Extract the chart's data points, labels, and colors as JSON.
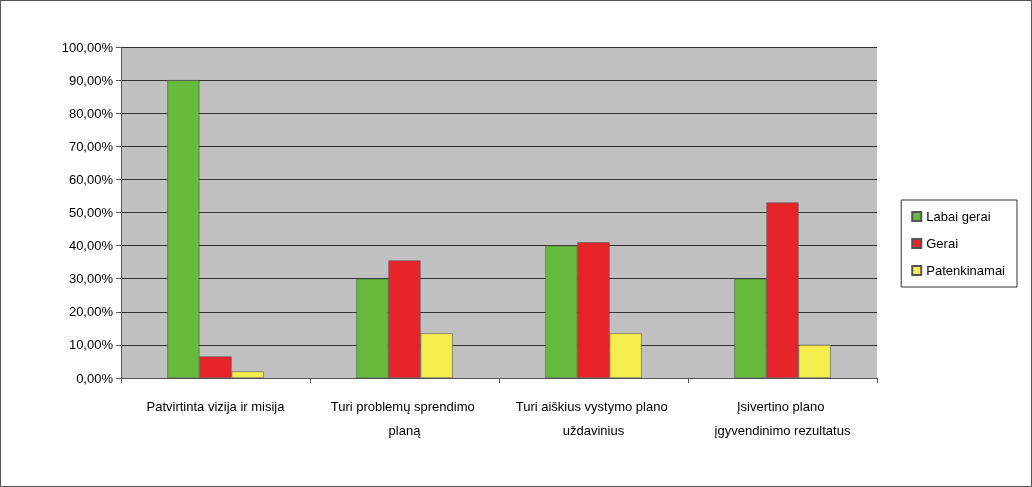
{
  "chart_data": {
    "type": "bar",
    "categories": [
      "Patvirtinta vizija ir misija",
      "Turi problemų sprendimo planą",
      "Turi aiškius vystymo plano uždavinius",
      "Įsivertino plano įgyvendinimo rezultatus"
    ],
    "series": [
      {
        "name": "Labai gerai",
        "color": "#66bb3c",
        "values": [
          90,
          30,
          40,
          30
        ]
      },
      {
        "name": "Gerai",
        "color": "#e8242b",
        "values": [
          6.5,
          35.5,
          41,
          53
        ]
      },
      {
        "name": "Patenkinamai",
        "color": "#f4ef4c",
        "values": [
          2,
          13.5,
          13.5,
          10
        ]
      }
    ],
    "ylim": [
      0,
      100
    ],
    "yticks": [
      {
        "value": 0,
        "label": "0,00%"
      },
      {
        "value": 10,
        "label": "10,00%"
      },
      {
        "value": 20,
        "label": "20,00%"
      },
      {
        "value": 30,
        "label": "30,00%"
      },
      {
        "value": 40,
        "label": "40,00%"
      },
      {
        "value": 50,
        "label": "50,00%"
      },
      {
        "value": 60,
        "label": "60,00%"
      },
      {
        "value": 70,
        "label": "70,00%"
      },
      {
        "value": 80,
        "label": "80,00%"
      },
      {
        "value": 90,
        "label": "90,00%"
      },
      {
        "value": 100,
        "label": "100,00%"
      }
    ],
    "grid": "y",
    "legend": "right"
  }
}
